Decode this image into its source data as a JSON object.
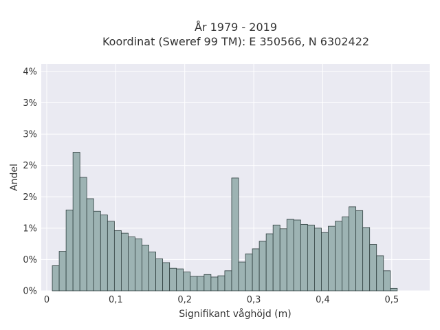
{
  "chart_data": {
    "type": "bar",
    "title_line1": "År 1979 - 2019",
    "title_line2": "Koordinat (Sweref 99 TM): E 350566, N 6302422",
    "xlabel": "Signifikant våghöjd (m)",
    "ylabel": "Andel",
    "xlim": [
      -0.008,
      0.555
    ],
    "ylim": [
      0,
      3.62
    ],
    "bin_width": 0.01,
    "bin_start": 0.008,
    "x_ticks": [
      {
        "value": 0,
        "label": "0"
      },
      {
        "value": 0.1,
        "label": "0,1"
      },
      {
        "value": 0.2,
        "label": "0,2"
      },
      {
        "value": 0.3,
        "label": "0,3"
      },
      {
        "value": 0.4,
        "label": "0,4"
      },
      {
        "value": 0.5,
        "label": "0,5"
      }
    ],
    "y_ticks": [
      {
        "value": 0,
        "label": "0%"
      },
      {
        "value": 0.5,
        "label": "0%"
      },
      {
        "value": 1.0,
        "label": "1%"
      },
      {
        "value": 1.5,
        "label": "2%"
      },
      {
        "value": 2.0,
        "label": "2%"
      },
      {
        "value": 2.5,
        "label": "3%"
      },
      {
        "value": 3.0,
        "label": "3%"
      },
      {
        "value": 3.5,
        "label": "4%"
      }
    ],
    "values": [
      0.4,
      0.63,
      1.29,
      2.21,
      1.81,
      1.47,
      1.27,
      1.21,
      1.11,
      0.96,
      0.92,
      0.86,
      0.83,
      0.73,
      0.62,
      0.51,
      0.45,
      0.36,
      0.35,
      0.3,
      0.23,
      0.23,
      0.26,
      0.22,
      0.24,
      0.32,
      1.8,
      0.46,
      0.59,
      0.67,
      0.79,
      0.91,
      1.05,
      0.99,
      1.14,
      1.13,
      1.06,
      1.05,
      1.0,
      0.93,
      1.03,
      1.11,
      1.18,
      1.34,
      1.28,
      1.01,
      0.74,
      0.56,
      0.32,
      0.04
    ],
    "bar_counts_note": "",
    "colors": {
      "plot_bg": "#eaeaf2",
      "bar_fill": "#9db3b3",
      "bar_edge": "#2f3f3f",
      "grid": "#ffffff"
    }
  }
}
